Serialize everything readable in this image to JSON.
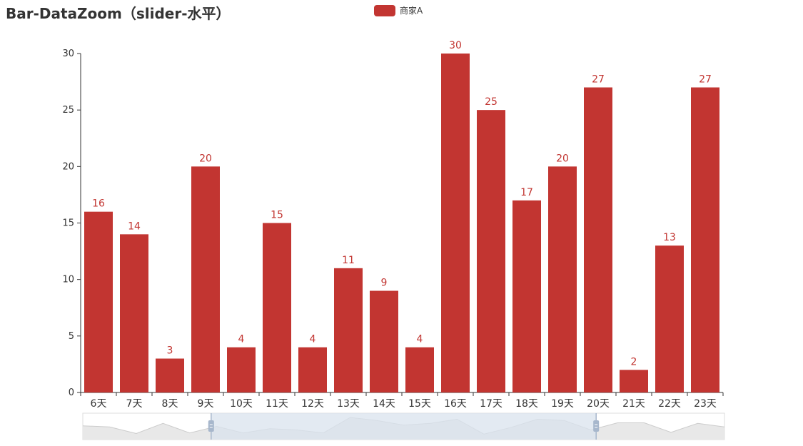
{
  "chart_data": {
    "type": "bar",
    "title": "Bar-DataZoom（slider-水平）",
    "legend": {
      "position": "top-center",
      "entries": [
        "商家A"
      ]
    },
    "categories": [
      "6天",
      "7天",
      "8天",
      "9天",
      "10天",
      "11天",
      "12天",
      "13天",
      "14天",
      "15天",
      "16天",
      "17天",
      "18天",
      "19天",
      "20天",
      "21天",
      "22天",
      "23天"
    ],
    "series": [
      {
        "name": "商家A",
        "color": "#c23531",
        "values": [
          16,
          14,
          3,
          20,
          4,
          15,
          4,
          11,
          9,
          4,
          30,
          25,
          17,
          20,
          27,
          2,
          13,
          27
        ]
      }
    ],
    "full_series_values": [
      16,
      14,
      3,
      20,
      4,
      15,
      4,
      11,
      9,
      4,
      30,
      25,
      17,
      20,
      27,
      2,
      13,
      27,
      25,
      9,
      21,
      21,
      5,
      20,
      14
    ],
    "ylim": [
      0,
      30
    ],
    "yticks": [
      0,
      5,
      10,
      15,
      20,
      25,
      30
    ],
    "xlabel": "",
    "ylabel": "",
    "data_labels": true,
    "grid": false,
    "datazoom": {
      "type": "slider",
      "orientation": "horizontal",
      "start_percent": 20,
      "end_percent": 80
    }
  },
  "colors": {
    "bar": "#c23531",
    "axis": "#333333",
    "slider_fill": "#d9e3ee",
    "slider_border": "#dddddd",
    "slider_handle": "#a7b7cc"
  }
}
